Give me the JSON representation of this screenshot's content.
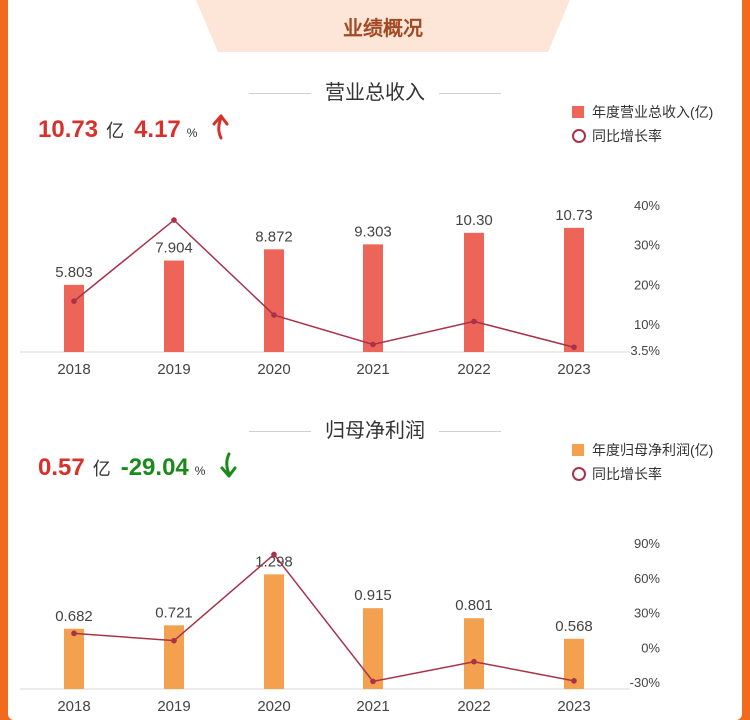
{
  "header": {
    "title": "业绩概况"
  },
  "chart_data": [
    {
      "type": "bar",
      "title": "营业总收入",
      "summary": {
        "value": "10.73",
        "unit": "亿",
        "change": "4.17",
        "change_unit": "%",
        "direction": "up"
      },
      "categories": [
        "2018",
        "2019",
        "2020",
        "2021",
        "2022",
        "2023"
      ],
      "series": [
        {
          "name": "年度营业总收入(亿)",
          "type": "bar",
          "color": "#ec6558",
          "values": [
            5.803,
            7.904,
            8.872,
            9.303,
            10.3,
            10.73
          ],
          "labels": [
            "5.803",
            "7.904",
            "8.872",
            "9.303",
            "10.30",
            "10.73"
          ]
        },
        {
          "name": "同比增长率",
          "type": "line",
          "color": "#a8324a",
          "values": [
            15.8,
            36.2,
            12.3,
            4.9,
            10.7,
            4.2
          ]
        }
      ],
      "y2_ticks": [
        "40%",
        "30%",
        "20%",
        "10%",
        "3.5%"
      ],
      "y2_tick_values": [
        40,
        30,
        20,
        10,
        3.5
      ],
      "y2lim": [
        3.5,
        40
      ],
      "ylim": [
        0,
        14
      ],
      "grid": false
    },
    {
      "type": "bar",
      "title": "归母净利润",
      "summary": {
        "value": "0.57",
        "unit": "亿",
        "change": "-29.04",
        "change_unit": "%",
        "direction": "down"
      },
      "categories": [
        "2018",
        "2019",
        "2020",
        "2021",
        "2022",
        "2023"
      ],
      "series": [
        {
          "name": "年度归母净利润(亿)",
          "type": "bar",
          "color": "#f3a04f",
          "values": [
            0.682,
            0.721,
            1.298,
            0.915,
            0.801,
            0.568
          ],
          "labels": [
            "0.682",
            "0.721",
            "1.298",
            "0.915",
            "0.801",
            "0.568"
          ]
        },
        {
          "name": "同比增长率",
          "type": "line",
          "color": "#a8324a",
          "values": [
            12,
            5.7,
            80.1,
            -29.5,
            -12.5,
            -29.0
          ]
        }
      ],
      "y2_ticks": [
        "90%",
        "60%",
        "30%",
        "0%",
        "-30%"
      ],
      "y2_tick_values": [
        90,
        60,
        30,
        0,
        -30
      ],
      "y2lim": [
        -30,
        90
      ],
      "ylim": [
        0,
        1.8
      ],
      "grid": false
    }
  ],
  "colors": {
    "accent": "#f26a1b",
    "up": "#d9302c",
    "down": "#1a8a1a",
    "tab": "#fde6d8",
    "tab_text": "#a24a25"
  }
}
